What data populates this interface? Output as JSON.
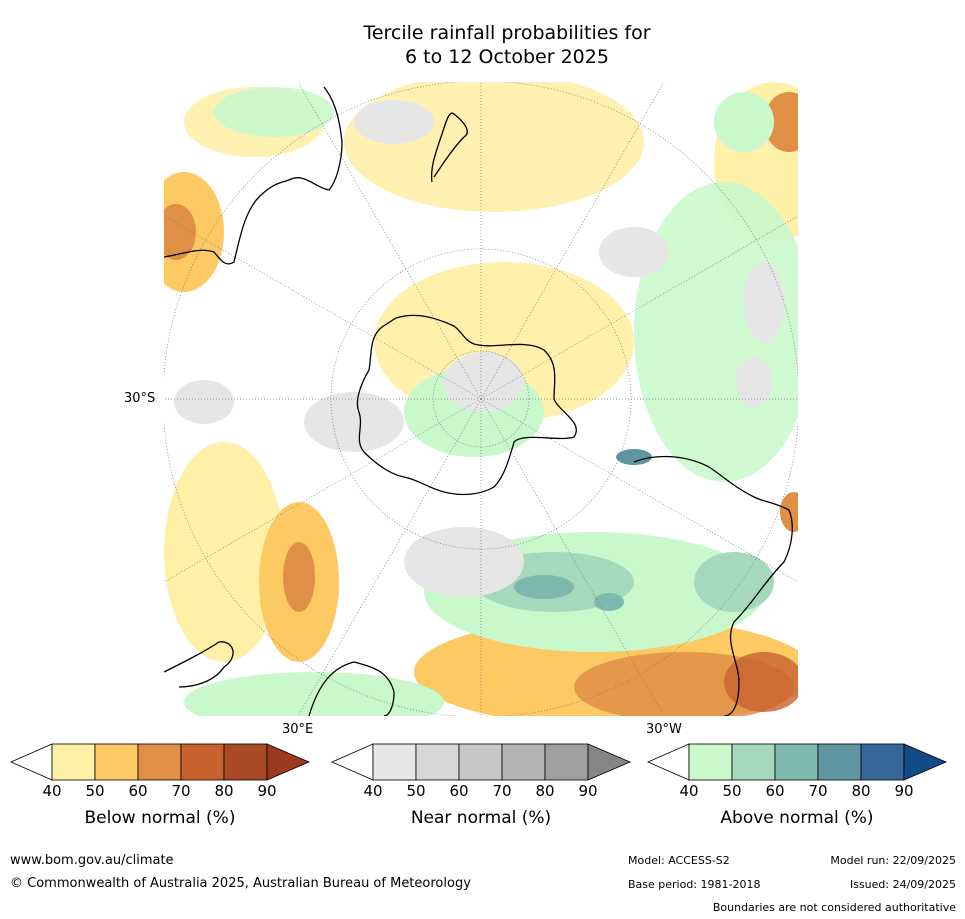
{
  "title_line1": "Tercile rainfall probabilities for",
  "title_line2": "6 to 12 October 2025",
  "map": {
    "projection": "south-polar-stereographic",
    "lat_label": "30°S",
    "lon_label_east": "30°E",
    "lon_label_west": "30°W"
  },
  "colorbars": [
    {
      "name": "below",
      "title": "Below normal (%)",
      "ticks": [
        "40",
        "50",
        "60",
        "70",
        "80",
        "90"
      ],
      "colors": [
        "#fff0a8",
        "#fdc962",
        "#e08f46",
        "#c8622f",
        "#a84a25"
      ],
      "extend_color": "#9c3a1f"
    },
    {
      "name": "near",
      "title": "Near normal (%)",
      "ticks": [
        "40",
        "50",
        "60",
        "70",
        "80",
        "90"
      ],
      "colors": [
        "#e6e6e6",
        "#d7d7d7",
        "#c8c8c8",
        "#b4b4b4",
        "#9f9f9f"
      ],
      "extend_color": "#858585"
    },
    {
      "name": "above",
      "title": "Above normal (%)",
      "ticks": [
        "40",
        "50",
        "60",
        "70",
        "80",
        "90"
      ],
      "colors": [
        "#c9f8cc",
        "#a6d8bc",
        "#7fb9ae",
        "#5f97a1",
        "#356898"
      ],
      "extend_color": "#134b86"
    }
  ],
  "footer": {
    "website": "www.bom.gov.au/climate",
    "copyright": "© Commonwealth of Australia 2025, Australian Bureau of Meteorology",
    "model": "Model: ACCESS-S2",
    "model_run": "Model run: 22/09/2025",
    "base_period": "Base period: 1981-2018",
    "issued": "Issued: 24/09/2025",
    "disclaimer": "Boundaries are not considered authoritative"
  }
}
